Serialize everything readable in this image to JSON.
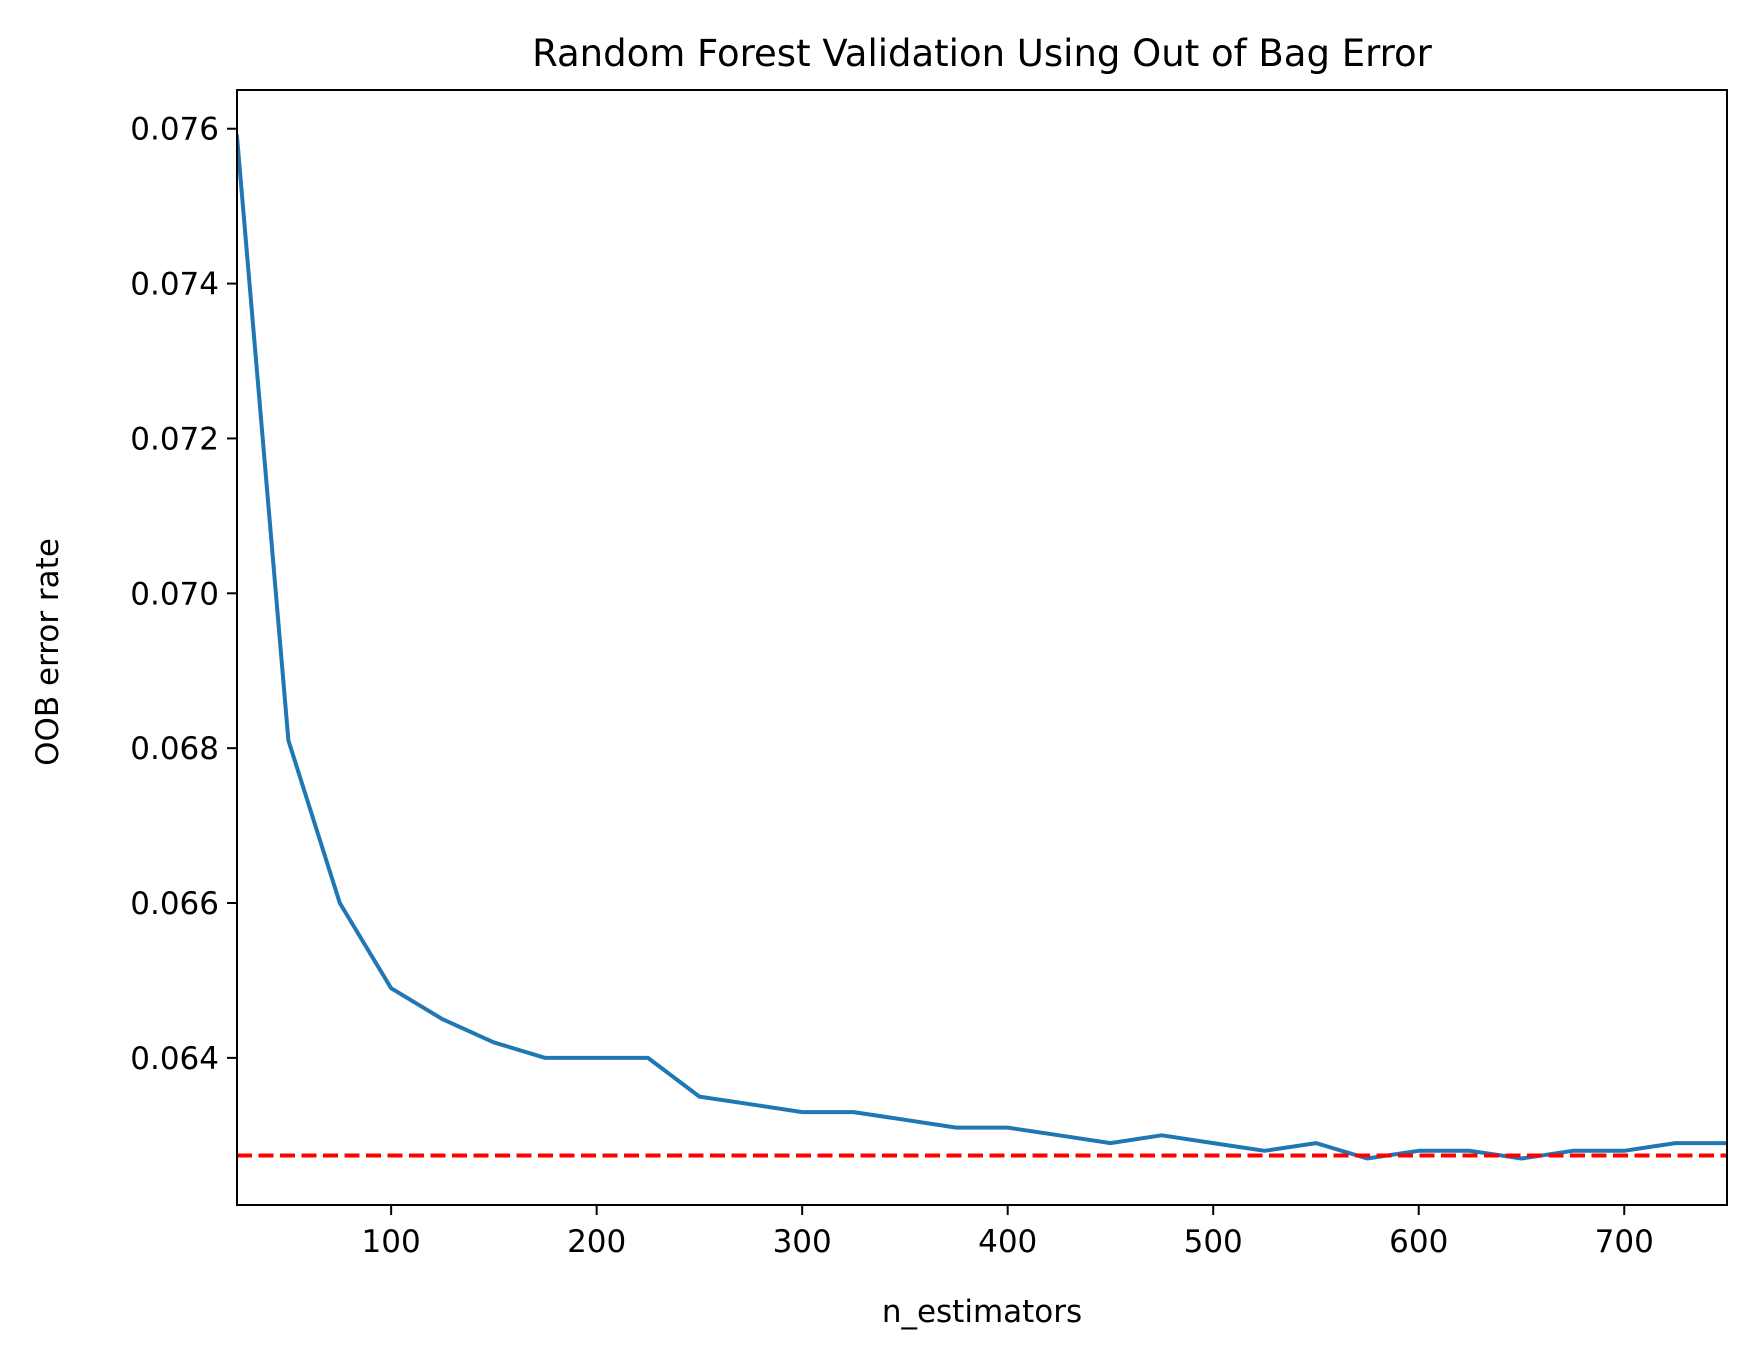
{
  "chart_data": {
    "type": "line",
    "title": "Random Forest Validation Using Out of Bag Error",
    "xlabel": "n_estimators",
    "ylabel": "OOB error rate",
    "xlim": [
      25,
      750
    ],
    "ylim": [
      0.0621,
      0.0765
    ],
    "xticks": [
      {
        "value": 100,
        "label": "100"
      },
      {
        "value": 200,
        "label": "200"
      },
      {
        "value": 300,
        "label": "300"
      },
      {
        "value": 400,
        "label": "400"
      },
      {
        "value": 500,
        "label": "500"
      },
      {
        "value": 600,
        "label": "600"
      },
      {
        "value": 700,
        "label": "700"
      }
    ],
    "yticks": [
      {
        "value": 0.064,
        "label": "0.064"
      },
      {
        "value": 0.066,
        "label": "0.066"
      },
      {
        "value": 0.068,
        "label": "0.068"
      },
      {
        "value": 0.07,
        "label": "0.070"
      },
      {
        "value": 0.072,
        "label": "0.072"
      },
      {
        "value": 0.074,
        "label": "0.074"
      },
      {
        "value": 0.076,
        "label": "0.076"
      }
    ],
    "grid": false,
    "series": [
      {
        "color": "#1f77b4",
        "x": [
          25,
          50,
          75,
          100,
          125,
          150,
          175,
          200,
          225,
          250,
          275,
          300,
          325,
          350,
          375,
          400,
          425,
          450,
          475,
          500,
          525,
          550,
          575,
          600,
          625,
          650,
          675,
          700,
          725,
          750
        ],
        "y": [
          0.0759,
          0.0681,
          0.066,
          0.0649,
          0.0645,
          0.0642,
          0.064,
          0.064,
          0.064,
          0.0635,
          0.0634,
          0.0633,
          0.0633,
          0.0632,
          0.0631,
          0.0631,
          0.063,
          0.0629,
          0.063,
          0.0629,
          0.0628,
          0.0629,
          0.0627,
          0.0628,
          0.0628,
          0.0627,
          0.0628,
          0.0628,
          0.0629,
          0.0629
        ]
      }
    ],
    "reference_line": {
      "y": 0.06274,
      "color": "#ff0000",
      "style": "dashed"
    }
  }
}
